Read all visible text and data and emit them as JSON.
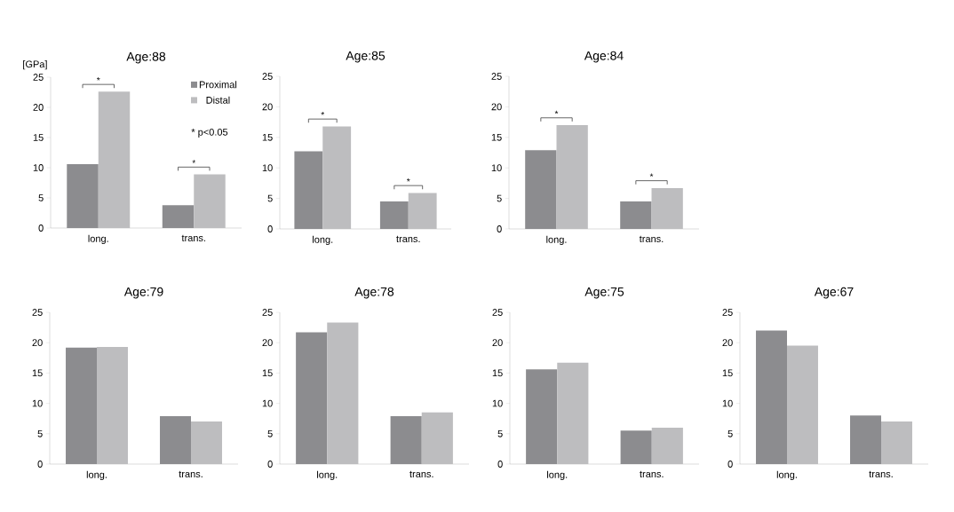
{
  "chart_data": [
    {
      "type": "bar",
      "title": "Age:88",
      "ylabel": "[GPa]",
      "categories": [
        "long.",
        "trans."
      ],
      "series": [
        {
          "name": "Proximal",
          "color": "#8c8c8f",
          "values": [
            10.6,
            3.8
          ]
        },
        {
          "name": "Distal",
          "color": "#bdbdbf",
          "values": [
            22.6,
            8.9
          ]
        }
      ],
      "ylim": [
        0,
        25
      ],
      "yticks": [
        0,
        5,
        10,
        15,
        20,
        25
      ],
      "legend": "top right",
      "annotations": [
        "*",
        "*",
        "* p<0.05"
      ]
    },
    {
      "type": "bar",
      "title": "Age:85",
      "categories": [
        "long.",
        "trans."
      ],
      "series": [
        {
          "color": "#8c8c8f",
          "values": [
            12.7,
            4.5
          ]
        },
        {
          "color": "#bdbdbf",
          "values": [
            16.8,
            5.9
          ]
        }
      ],
      "ylim": [
        0,
        25
      ],
      "yticks": [
        0,
        5,
        10,
        15,
        20,
        25
      ],
      "annotations": [
        "*",
        "*"
      ]
    },
    {
      "type": "bar",
      "title": "Age:84",
      "categories": [
        "long.",
        "trans."
      ],
      "series": [
        {
          "color": "#8c8c8f",
          "values": [
            12.9,
            4.5
          ]
        },
        {
          "color": "#bdbdbf",
          "values": [
            17.0,
            6.7
          ]
        }
      ],
      "ylim": [
        0,
        25
      ],
      "yticks": [
        0,
        5,
        10,
        15,
        20,
        25
      ],
      "annotations": [
        "*",
        "*"
      ]
    },
    {
      "type": "bar",
      "title": "Age:79",
      "categories": [
        "long.",
        "trans."
      ],
      "series": [
        {
          "color": "#8c8c8f",
          "values": [
            19.2,
            7.9
          ]
        },
        {
          "color": "#bdbdbf",
          "values": [
            19.3,
            7.0
          ]
        }
      ],
      "ylim": [
        0,
        25
      ],
      "yticks": [
        0,
        5,
        10,
        15,
        20,
        25
      ]
    },
    {
      "type": "bar",
      "title": "Age:78",
      "categories": [
        "long.",
        "trans."
      ],
      "series": [
        {
          "color": "#8c8c8f",
          "values": [
            21.7,
            7.9
          ]
        },
        {
          "color": "#bdbdbf",
          "values": [
            23.3,
            8.5
          ]
        }
      ],
      "ylim": [
        0,
        25
      ],
      "yticks": [
        0,
        5,
        10,
        15,
        20,
        25
      ]
    },
    {
      "type": "bar",
      "title": "Age:75",
      "categories": [
        "long.",
        "trans."
      ],
      "series": [
        {
          "color": "#8c8c8f",
          "values": [
            15.6,
            5.5
          ]
        },
        {
          "color": "#bdbdbf",
          "values": [
            16.7,
            6.0
          ]
        }
      ],
      "ylim": [
        0,
        25
      ],
      "yticks": [
        0,
        5,
        10,
        15,
        20,
        25
      ]
    },
    {
      "type": "bar",
      "title": "Age:67",
      "categories": [
        "long.",
        "trans."
      ],
      "series": [
        {
          "color": "#8c8c8f",
          "values": [
            22.0,
            8.0
          ]
        },
        {
          "color": "#bdbdbf",
          "values": [
            19.5,
            7.0
          ]
        }
      ],
      "ylim": [
        0,
        25
      ],
      "yticks": [
        0,
        5,
        10,
        15,
        20,
        25
      ]
    }
  ]
}
